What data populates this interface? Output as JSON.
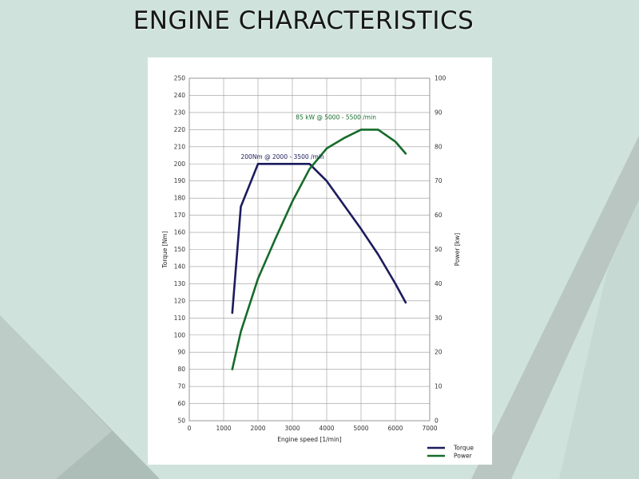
{
  "page": {
    "title": "ENGINE CHARACTERISTICS"
  },
  "chart_data": {
    "type": "line",
    "xlabel": "Engine speed [1/min]",
    "ylabel_left": "Torque [Nm]",
    "ylabel_right": "Power [kw]",
    "xlim": [
      0,
      7000
    ],
    "x_ticks": [
      0,
      1000,
      2000,
      3000,
      4000,
      5000,
      6000,
      7000
    ],
    "ylim_left": [
      50,
      250
    ],
    "y_ticks_left": [
      50,
      60,
      70,
      80,
      90,
      100,
      110,
      120,
      130,
      140,
      150,
      160,
      170,
      180,
      190,
      200,
      210,
      220,
      230,
      240,
      250
    ],
    "ylim_right": [
      0,
      100
    ],
    "y_ticks_right": [
      0,
      10,
      20,
      30,
      40,
      50,
      60,
      70,
      80,
      90,
      100
    ],
    "grid": true,
    "legend_position": "bottom-right",
    "series": [
      {
        "name": "Torque",
        "axis": "left",
        "color": "#1b1b5e",
        "x": [
          1250,
          1500,
          2000,
          2500,
          3000,
          3500,
          4000,
          4500,
          5000,
          5500,
          6000,
          6300
        ],
        "y": [
          113,
          175,
          200,
          200,
          200,
          200,
          190,
          176,
          162,
          147,
          130,
          119
        ]
      },
      {
        "name": "Power",
        "axis": "right",
        "color": "#156b2a",
        "x": [
          1250,
          1500,
          2000,
          2500,
          3000,
          3500,
          4000,
          4500,
          5000,
          5500,
          6000,
          6300
        ],
        "y": [
          15,
          26,
          41.5,
          53,
          64,
          73.5,
          79.5,
          82.5,
          85,
          85,
          81.5,
          78
        ]
      }
    ],
    "annotations": [
      {
        "text": "200Nm @ 2000 - 3500 /min",
        "x": 1500,
        "y": 203,
        "axis": "left",
        "color": "#1b1b5e"
      },
      {
        "text": "85 kW @ 5000 - 5500 /min",
        "x": 3100,
        "y": 88,
        "axis": "right",
        "color": "#156b2a"
      }
    ]
  }
}
